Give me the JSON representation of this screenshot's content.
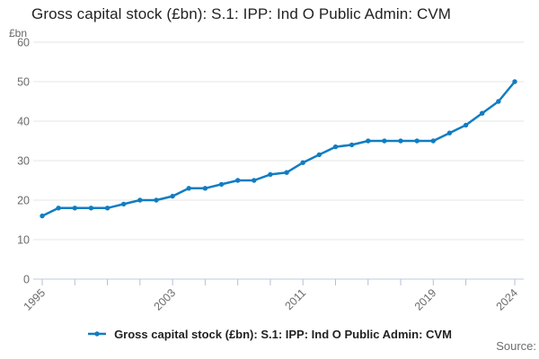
{
  "title": "Gross capital stock (£bn): S.1: IPP: Ind O Public Admin: CVM",
  "y_axis_unit": "£bn",
  "source_label": "Source:",
  "legend": {
    "label": "Gross capital stock (£bn): S.1: IPP: Ind O Public Admin: CVM",
    "marker": "line-dot-icon"
  },
  "colors": {
    "line": "#107dc2",
    "grid": "#e6e6e6",
    "axis": "#c2c9dd",
    "tick": "#b7bfd4",
    "muted_text": "#6b6b6b",
    "title_text": "#222222"
  },
  "chart_data": {
    "type": "line",
    "title": "Gross capital stock (£bn): S.1: IPP: Ind O Public Admin: CVM",
    "xlabel": "",
    "ylabel": "£bn",
    "ylim": [
      0,
      60
    ],
    "y_ticks": [
      0,
      10,
      20,
      30,
      40,
      50,
      60
    ],
    "x": [
      1995,
      1996,
      1997,
      1998,
      1999,
      2000,
      2001,
      2002,
      2003,
      2004,
      2005,
      2006,
      2007,
      2008,
      2009,
      2010,
      2011,
      2012,
      2013,
      2014,
      2015,
      2016,
      2017,
      2018,
      2019,
      2020,
      2021,
      2022,
      2023,
      2024
    ],
    "values": [
      16,
      18,
      18,
      18,
      18,
      19,
      20,
      20,
      21,
      23,
      23,
      24,
      25,
      25,
      26.5,
      27,
      29.5,
      31.5,
      33.5,
      34,
      35,
      35,
      35,
      35,
      35,
      37,
      39,
      42,
      45,
      50
    ],
    "x_tick_marks": [
      1995,
      1997,
      1999,
      2001,
      2003,
      2005,
      2007,
      2009,
      2011,
      2013,
      2015,
      2017,
      2019,
      2021,
      2024
    ],
    "x_tick_labels": [
      1995,
      2003,
      2011,
      2019,
      2024
    ],
    "grid": "horizontal",
    "legend_position": "bottom",
    "marker": "circle",
    "series_name": "Gross capital stock (£bn): S.1: IPP: Ind O Public Admin: CVM"
  }
}
